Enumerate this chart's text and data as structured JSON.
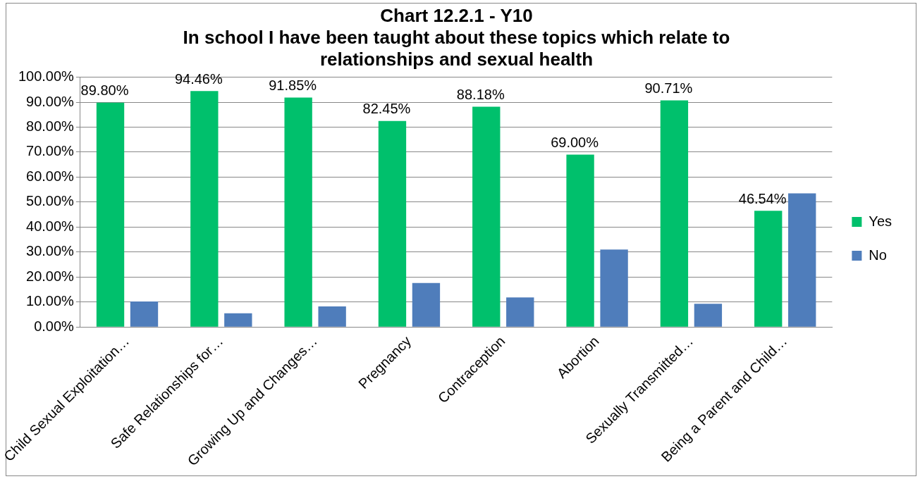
{
  "chart_data": {
    "type": "bar",
    "title": "Chart 12.2.1 - Y10\nIn school I have been taught about these topics which relate to\nrelationships and sexual health",
    "categories": [
      "Child Sexual Exploitation…",
      "Safe Relationships for…",
      "Growing Up and Changes…",
      "Pregnancy",
      "Contraception",
      "Abortion",
      "Sexually Transmitted…",
      "Being a Parent and Child…"
    ],
    "series": [
      {
        "name": "Yes",
        "color": "#00c06c",
        "values": [
          89.8,
          94.46,
          91.85,
          82.45,
          88.18,
          69.0,
          90.71,
          46.54
        ],
        "value_labels": [
          "89.80%",
          "94.46%",
          "91.85%",
          "82.45%",
          "88.18%",
          "69.00%",
          "90.71%",
          "46.54%"
        ]
      },
      {
        "name": "No",
        "color": "#4f7dbb",
        "values": [
          10.2,
          5.5,
          8.2,
          17.6,
          11.8,
          31.0,
          9.3,
          53.5
        ]
      }
    ],
    "ylim": [
      0,
      100
    ],
    "yticks": [
      {
        "value": 0,
        "label": "0.00%"
      },
      {
        "value": 10,
        "label": "10.00%"
      },
      {
        "value": 20,
        "label": "20.00%"
      },
      {
        "value": 30,
        "label": "30.00%"
      },
      {
        "value": 40,
        "label": "40.00%"
      },
      {
        "value": 50,
        "label": "50.00%"
      },
      {
        "value": 60,
        "label": "60.00%"
      },
      {
        "value": 70,
        "label": "70.00%"
      },
      {
        "value": 80,
        "label": "80.00%"
      },
      {
        "value": 90,
        "label": "90.00%"
      },
      {
        "value": 100,
        "label": "100.00%"
      }
    ],
    "grid": "y",
    "legend": "right"
  }
}
